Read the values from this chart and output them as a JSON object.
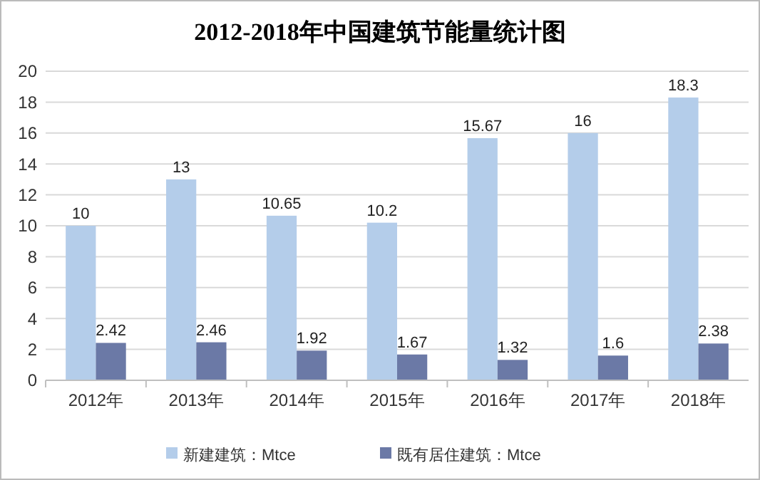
{
  "chart_data": {
    "type": "bar",
    "title": "2012-2018年中国建筑节能量统计图",
    "categories": [
      "2012年",
      "2013年",
      "2014年",
      "2015年",
      "2016年",
      "2017年",
      "2018年"
    ],
    "series": [
      {
        "name": "新建建筑：Mtce",
        "color": "#b4cdea",
        "values": [
          10,
          13,
          10.65,
          10.2,
          15.67,
          16,
          18.3
        ]
      },
      {
        "name": "既有居住建筑：Mtce",
        "color": "#6b79a6",
        "values": [
          2.42,
          2.46,
          1.92,
          1.67,
          1.32,
          1.6,
          2.38
        ]
      }
    ],
    "ylim": [
      0,
      20
    ],
    "yticks": [
      0,
      2,
      4,
      6,
      8,
      10,
      12,
      14,
      16,
      18,
      20
    ],
    "grid": "y",
    "legend": "bottom",
    "data_labels": true
  }
}
